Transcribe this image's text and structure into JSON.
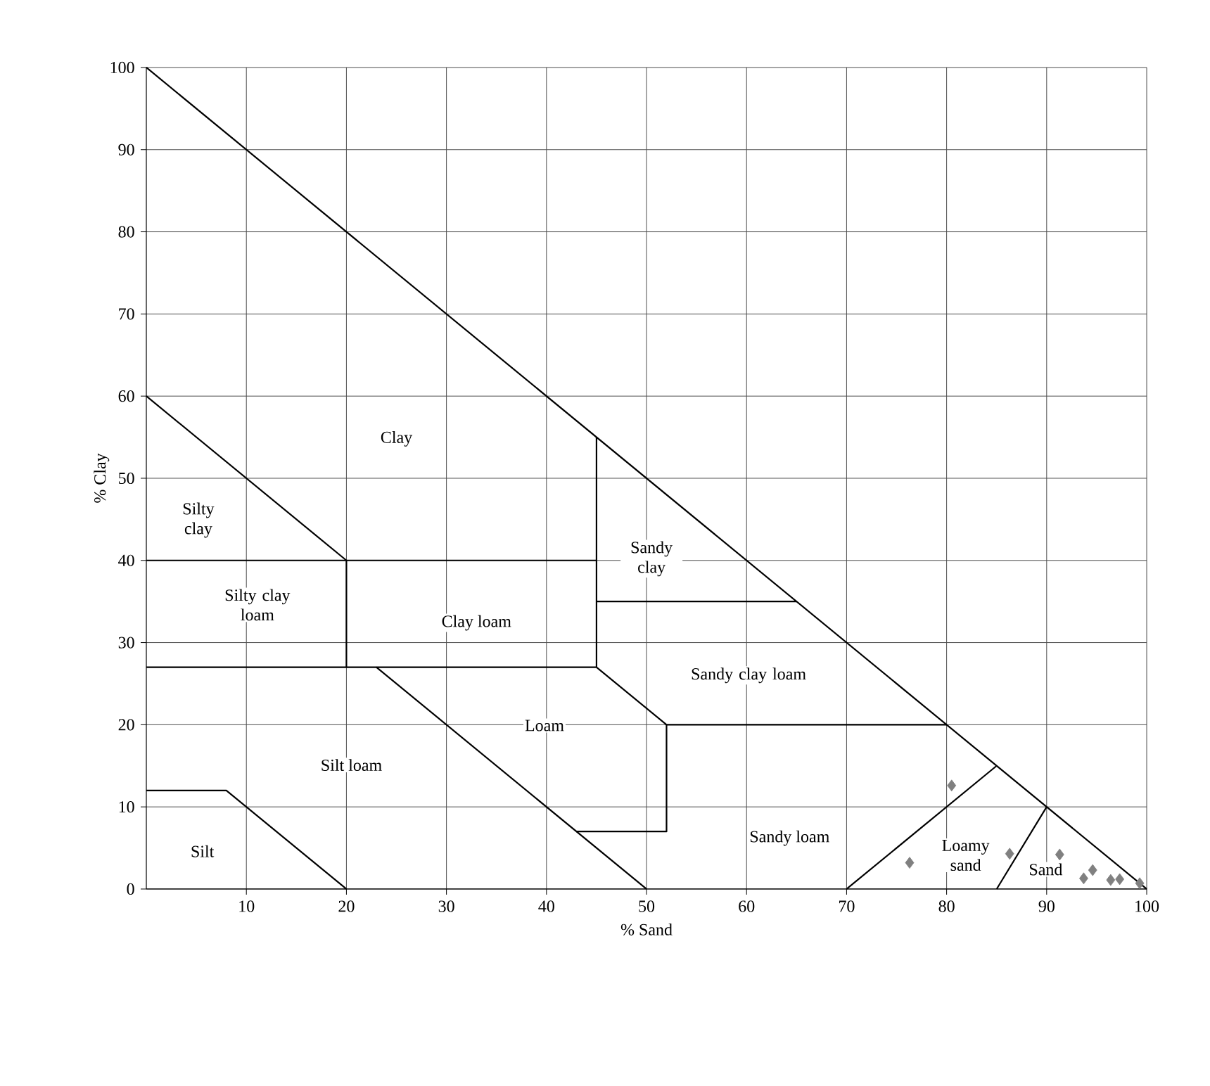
{
  "chart_data": {
    "type": "line",
    "xlabel": "% Sand",
    "ylabel": "% Clay",
    "xlim": [
      0,
      100
    ],
    "ylim": [
      0,
      100
    ],
    "xticks": [
      10,
      20,
      30,
      40,
      50,
      60,
      70,
      80,
      90,
      100
    ],
    "yticks": [
      0,
      10,
      20,
      30,
      40,
      50,
      60,
      70,
      80,
      90,
      100
    ],
    "grid": true,
    "series": [
      {
        "color": "#000000",
        "marker": "none",
        "x": [
          0,
          100
        ],
        "values": [
          100,
          0
        ]
      },
      {
        "color": "#000000",
        "marker": "none",
        "x": [
          0,
          20
        ],
        "values": [
          60,
          40
        ]
      },
      {
        "color": "#000000",
        "marker": "none",
        "x": [
          0,
          45
        ],
        "values": [
          40,
          40
        ]
      },
      {
        "color": "#000000",
        "marker": "none",
        "x": [
          20,
          20
        ],
        "values": [
          40,
          27
        ]
      },
      {
        "color": "#000000",
        "marker": "none",
        "x": [
          0,
          45
        ],
        "values": [
          27,
          27
        ]
      },
      {
        "color": "#000000",
        "marker": "none",
        "x": [
          45,
          45
        ],
        "values": [
          55,
          27
        ]
      },
      {
        "color": "#000000",
        "marker": "none",
        "x": [
          45,
          65
        ],
        "values": [
          35,
          35
        ]
      },
      {
        "color": "#000000",
        "marker": "none",
        "x": [
          45,
          52,
          80
        ],
        "values": [
          27,
          20,
          20
        ]
      },
      {
        "color": "#000000",
        "marker": "none",
        "x": [
          52,
          52,
          43
        ],
        "values": [
          20,
          7,
          7
        ]
      },
      {
        "color": "#000000",
        "marker": "none",
        "x": [
          23,
          50
        ],
        "values": [
          27,
          0
        ]
      },
      {
        "color": "#000000",
        "marker": "none",
        "x": [
          0,
          8,
          20
        ],
        "values": [
          12,
          12,
          0
        ]
      },
      {
        "color": "#000000",
        "marker": "none",
        "x": [
          70,
          85
        ],
        "values": [
          0,
          15
        ]
      },
      {
        "color": "#000000",
        "marker": "none",
        "x": [
          85,
          90
        ],
        "values": [
          0,
          10
        ]
      },
      {
        "type": "scatter",
        "color": "#808080",
        "marker": "diamond",
        "x": [
          80.5,
          76.3,
          86.3,
          91.3,
          93.7,
          94.6,
          96.4,
          97.3,
          99.3
        ],
        "values": [
          12.6,
          3.2,
          4.3,
          4.2,
          1.3,
          2.3,
          1.1,
          1.2,
          0.7
        ]
      }
    ],
    "annotations": [
      "Clay",
      "Silty clay",
      "Silty clay loam",
      "Clay loam",
      "Sandy clay",
      "Sandy clay loam",
      "Loam",
      "Silt loam",
      "Silt",
      "Sandy loam",
      "Loamy sand",
      "Sand"
    ]
  }
}
